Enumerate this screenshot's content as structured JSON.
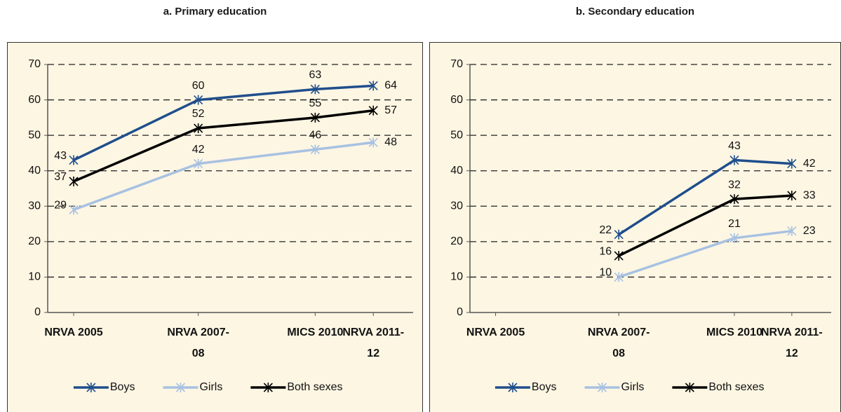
{
  "chart_data": [
    {
      "type": "line",
      "title": "a. Primary education",
      "categories": [
        "NRVA 2005",
        "NRVA 2007-08",
        "MICS 2010",
        "NRVA 2011-12"
      ],
      "series": [
        {
          "name": "Boys",
          "color": "#1f4e8c",
          "values": [
            43,
            60,
            63,
            64
          ]
        },
        {
          "name": "Girls",
          "color": "#a7c1e2",
          "values": [
            29,
            42,
            46,
            48
          ]
        },
        {
          "name": "Both sexes",
          "color": "#000000",
          "values": [
            37,
            52,
            55,
            57
          ]
        }
      ],
      "ylim": [
        0,
        70
      ],
      "yticks": [
        0,
        10,
        20,
        30,
        40,
        50,
        60,
        70
      ],
      "grid": true,
      "legend": "bottom"
    },
    {
      "type": "line",
      "title": "b. Secondary education",
      "categories": [
        "NRVA 2005",
        "NRVA 2007-08",
        "MICS 2010",
        "NRVA 2011-12"
      ],
      "series": [
        {
          "name": "Boys",
          "color": "#1f4e8c",
          "values": [
            null,
            22,
            43,
            42
          ]
        },
        {
          "name": "Girls",
          "color": "#a7c1e2",
          "values": [
            null,
            10,
            21,
            23
          ]
        },
        {
          "name": "Both sexes",
          "color": "#000000",
          "values": [
            null,
            16,
            32,
            33
          ]
        }
      ],
      "ylim": [
        0,
        70
      ],
      "yticks": [
        0,
        10,
        20,
        30,
        40,
        50,
        60,
        70
      ],
      "grid": true,
      "legend": "bottom"
    }
  ]
}
